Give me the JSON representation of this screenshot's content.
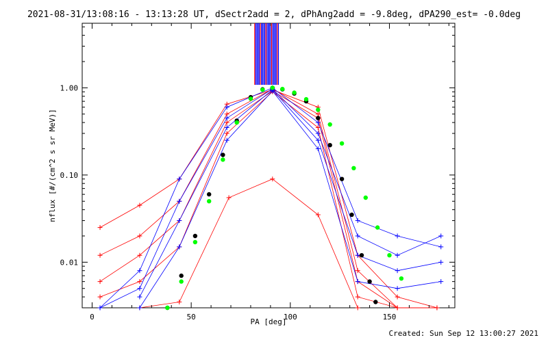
{
  "header": {
    "title": "2021-08-31/13:08:16 - 13:13:28 UT, dSectr2add = 2, dPhAng2add = -9.8deg, dPA290_est= -0.0deg"
  },
  "footer": {
    "created": "Created: Sun Sep 12 13:00:27 2021"
  },
  "chart_data": {
    "type": "line",
    "xlabel": "PA [deg]",
    "ylabel": "nflux [#/(cm^2 s sr MeV)]",
    "xlim": [
      -5,
      183
    ],
    "ylim": [
      0.003,
      5.5
    ],
    "yscale": "log",
    "xticks": [
      0,
      50,
      100,
      150
    ],
    "xtick_labels": [
      "0",
      "50",
      "100",
      "150"
    ],
    "yticks": [
      0.01,
      0.1,
      1.0
    ],
    "ytick_labels": [
      "0.01",
      "0.10",
      "1.00"
    ],
    "colors": {
      "red": "#ff0000",
      "blue": "#0000ff",
      "black": "#000000",
      "green": "#00ff00",
      "frame": "#000000"
    },
    "series": [
      {
        "color": "red",
        "marker": "+",
        "x": [
          4,
          24,
          44,
          68,
          91,
          114,
          134,
          154,
          174
        ],
        "y": [
          0.025,
          0.045,
          0.09,
          0.65,
          0.95,
          0.6,
          0.012,
          0.004,
          0.003
        ]
      },
      {
        "color": "red",
        "marker": "+",
        "x": [
          4,
          24,
          44,
          68,
          91,
          114,
          134,
          154,
          174
        ],
        "y": [
          0.012,
          0.02,
          0.05,
          0.5,
          0.97,
          0.5,
          0.008,
          0.003,
          0.003
        ]
      },
      {
        "color": "red",
        "marker": "+",
        "x": [
          4,
          24,
          44,
          68,
          91,
          114,
          134,
          154,
          174
        ],
        "y": [
          0.006,
          0.012,
          0.03,
          0.4,
          0.92,
          0.45,
          0.006,
          0.003,
          0.003
        ]
      },
      {
        "color": "red",
        "marker": "+",
        "x": [
          4,
          24,
          44,
          68,
          91,
          114,
          134,
          154,
          174
        ],
        "y": [
          0.004,
          0.006,
          0.015,
          0.3,
          0.9,
          0.35,
          0.004,
          0.003,
          0.003
        ]
      },
      {
        "color": "red",
        "marker": "+",
        "x": [
          24,
          44,
          69,
          91,
          114,
          134
        ],
        "y": [
          0.003,
          0.0035,
          0.055,
          0.09,
          0.035,
          0.003
        ]
      },
      {
        "color": "blue",
        "marker": "+",
        "x": [
          4,
          24,
          44,
          68,
          91,
          114,
          134,
          154,
          176
        ],
        "y": [
          0.003,
          0.008,
          0.09,
          0.6,
          1.0,
          0.4,
          0.03,
          0.02,
          0.015
        ]
      },
      {
        "color": "blue",
        "marker": "+",
        "x": [
          4,
          24,
          44,
          68,
          91,
          114,
          134,
          154,
          176
        ],
        "y": [
          0.003,
          0.005,
          0.05,
          0.45,
          0.97,
          0.3,
          0.02,
          0.012,
          0.02
        ]
      },
      {
        "color": "blue",
        "marker": "+",
        "x": [
          24,
          44,
          68,
          91,
          114,
          134,
          154,
          176
        ],
        "y": [
          0.004,
          0.03,
          0.35,
          0.95,
          0.25,
          0.012,
          0.008,
          0.01
        ]
      },
      {
        "color": "blue",
        "marker": "+",
        "x": [
          24,
          44,
          68,
          91,
          114,
          134,
          154,
          176
        ],
        "y": [
          0.003,
          0.015,
          0.25,
          0.92,
          0.2,
          0.006,
          0.005,
          0.006
        ]
      }
    ],
    "fit_curves": [
      {
        "color": "black",
        "marker": "filled-circle",
        "x": [
          38,
          45,
          52,
          59,
          66,
          73,
          80,
          86,
          91,
          96,
          102,
          108,
          114,
          120,
          126,
          131,
          136,
          140,
          143
        ],
        "y": [
          0.003,
          0.007,
          0.02,
          0.06,
          0.17,
          0.42,
          0.78,
          0.96,
          1.0,
          0.96,
          0.86,
          0.7,
          0.45,
          0.22,
          0.09,
          0.035,
          0.012,
          0.006,
          0.0035
        ]
      },
      {
        "color": "green",
        "marker": "filled-circle",
        "x": [
          38,
          45,
          52,
          59,
          66,
          73,
          80,
          86,
          91,
          96,
          102,
          108,
          114,
          120,
          126,
          132,
          138,
          144,
          150,
          156
        ],
        "y": [
          0.003,
          0.006,
          0.017,
          0.05,
          0.15,
          0.4,
          0.75,
          0.95,
          1.0,
          0.97,
          0.88,
          0.74,
          0.56,
          0.38,
          0.23,
          0.12,
          0.055,
          0.025,
          0.012,
          0.0065
        ]
      }
    ],
    "top_bars": {
      "region_x": [
        82,
        94
      ],
      "colors": [
        "red",
        "blue"
      ]
    }
  }
}
